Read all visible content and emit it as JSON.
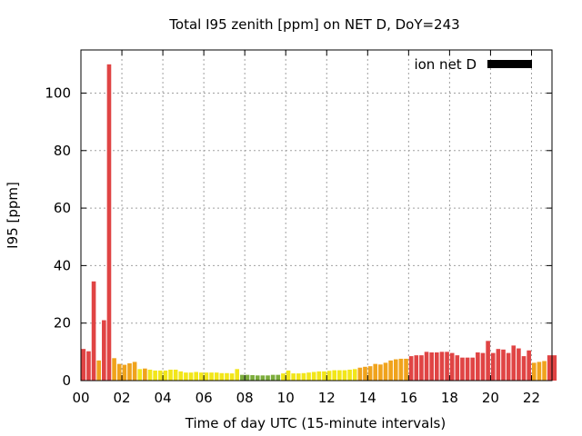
{
  "chart_data": {
    "type": "bar",
    "title": "Total I95 zenith [ppm] on NET D, DoY=243",
    "xlabel": "Time of day UTC (15-minute intervals)",
    "ylabel": "I95 [ppm]",
    "xlim": [
      0,
      23
    ],
    "ylim": [
      0,
      115
    ],
    "xticks": [
      "00",
      "02",
      "04",
      "06",
      "08",
      "10",
      "12",
      "14",
      "16",
      "18",
      "20",
      "22"
    ],
    "yticks": [
      "0",
      "20",
      "40",
      "60",
      "80",
      "100"
    ],
    "grid": true,
    "legend": {
      "label": "ion net D",
      "color": "#000000",
      "placement": "top-right"
    },
    "bin_width_hours": 0.25,
    "values": [
      11,
      10.2,
      34.5,
      7,
      21,
      110,
      7.8,
      5.8,
      5.5,
      6,
      6.5,
      4,
      4.2,
      3.8,
      3.5,
      3.5,
      3.5,
      3.8,
      3.8,
      3.2,
      2.8,
      2.8,
      3,
      2.8,
      2.8,
      2.8,
      2.8,
      2.6,
      2.6,
      2.5,
      4,
      2,
      2,
      1.9,
      1.8,
      1.8,
      1.8,
      2,
      2,
      2.5,
      3.5,
      2.5,
      2.5,
      2.6,
      2.8,
      3,
      3.2,
      3.2,
      3.4,
      3.6,
      3.6,
      3.6,
      3.8,
      4,
      4.5,
      4.8,
      5,
      5.8,
      5.6,
      6.2,
      7,
      7.4,
      7.6,
      7.6,
      8.5,
      8.8,
      8.8,
      10,
      9.8,
      9.8,
      10,
      10,
      9.6,
      8.8,
      8,
      8,
      8,
      9.8,
      9.6,
      13.8,
      9.6,
      11,
      10.8,
      9.6,
      12.2,
      11.2,
      8.5,
      10.5,
      6.2,
      6.5,
      6.8,
      8.8,
      8.8
    ]
  }
}
